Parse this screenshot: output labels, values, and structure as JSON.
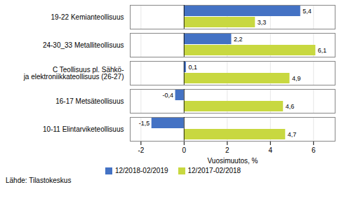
{
  "chart_data": {
    "type": "bar",
    "orientation": "horizontal",
    "categories": [
      "19-22 Kemianteollisuus",
      "24-30_33 Metalliteollisuus",
      "C Teollisuus pl. Sähkö-\nja elektroniikkateollisuus (26-27)",
      "16-17 Metsäteollisuus",
      "10-11 Elintarviketeollisuus"
    ],
    "series": [
      {
        "name": "12/2018-02/2019",
        "color": "#4472C4",
        "values": [
          5.4,
          2.2,
          0.1,
          -0.4,
          -1.5
        ],
        "value_labels": [
          "5,4",
          "2,2",
          "0,1",
          "-0,4",
          "-1,5"
        ]
      },
      {
        "name": "12/2017-02/2018",
        "color": "#C8D840",
        "values": [
          3.3,
          6.1,
          4.9,
          4.6,
          4.7
        ],
        "value_labels": [
          "3,3",
          "6,1",
          "4,9",
          "4,6",
          "4,7"
        ]
      }
    ],
    "xlabel": "Vuosimuutos, %",
    "xlim": [
      -2.5,
      7.0
    ],
    "xticks": [
      -2,
      0,
      2,
      4,
      6
    ],
    "grid": true,
    "data_labels": true,
    "legend": "bottom",
    "annotations": [
      "Lähde: Tilastokeskus"
    ]
  }
}
